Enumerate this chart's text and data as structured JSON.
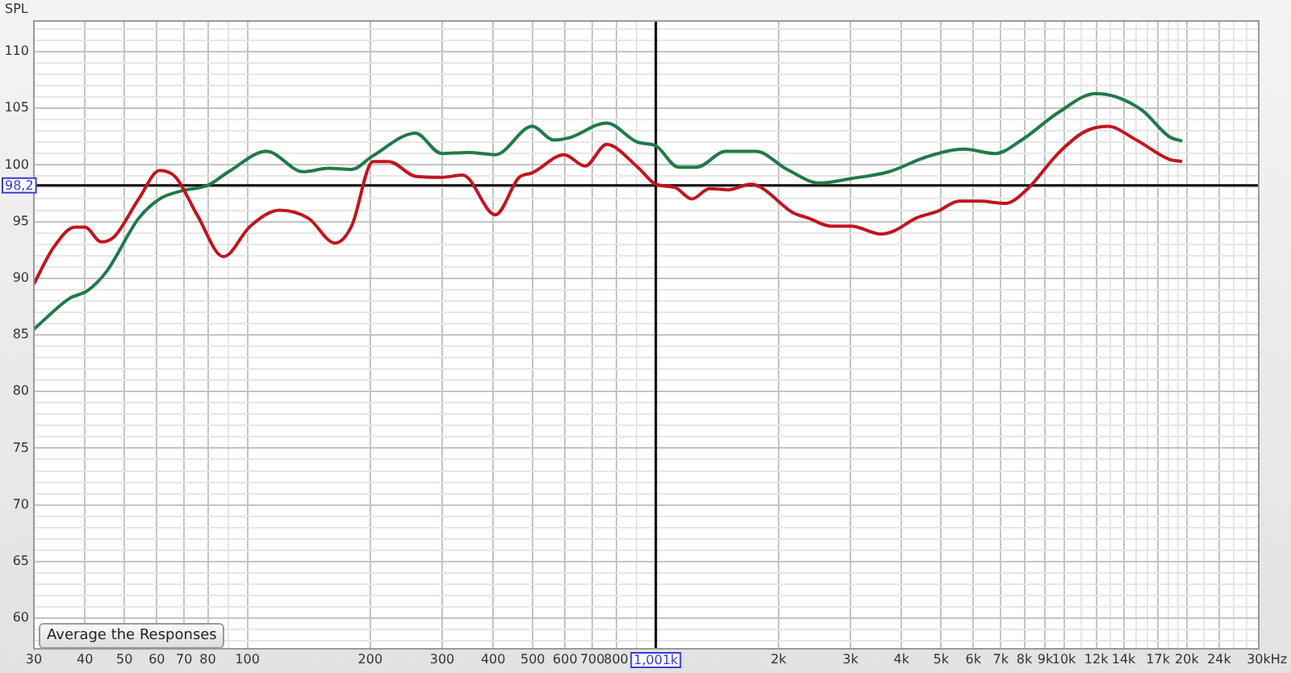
{
  "chart_data": {
    "type": "line",
    "ylabel": "SPL",
    "log": "x",
    "grid": true,
    "legend": false,
    "marker": "none",
    "line_style": "solid",
    "annotations": [
      "Average the Responses"
    ],
    "xlim": [
      30,
      30000
    ],
    "ylim": [
      57.3,
      112.7
    ],
    "xticks": [
      30,
      40,
      50,
      60,
      70,
      80,
      {
        "value": 90,
        "label": null
      },
      100,
      200,
      300,
      400,
      500,
      600,
      700,
      800,
      {
        "value": 900,
        "label": null
      },
      {
        "value": 2000,
        "label": "2k"
      },
      {
        "value": 3000,
        "label": "3k"
      },
      {
        "value": 4000,
        "label": "4k"
      },
      {
        "value": 5000,
        "label": "5k"
      },
      {
        "value": 6000,
        "label": "6k"
      },
      {
        "value": 7000,
        "label": "7k"
      },
      {
        "value": 8000,
        "label": "8k"
      },
      {
        "value": 9000,
        "label": "9k"
      },
      {
        "value": 10000,
        "label": "10k"
      },
      {
        "value": 11000,
        "label": null
      },
      {
        "value": 12000,
        "label": "12k"
      },
      {
        "value": 13000,
        "label": null
      },
      {
        "value": 14000,
        "label": "14k"
      },
      {
        "value": 15000,
        "label": null
      },
      {
        "value": 16000,
        "label": null
      },
      {
        "value": 17000,
        "label": "17k"
      },
      {
        "value": 18000,
        "label": null
      },
      {
        "value": 19000,
        "label": null
      },
      {
        "value": 20000,
        "label": "20k"
      },
      {
        "value": 22000,
        "label": null
      },
      {
        "value": 24000,
        "label": "24k"
      },
      {
        "value": 26000,
        "label": null
      },
      {
        "value": 28000,
        "label": null
      },
      {
        "value": 30000,
        "label": "30k"
      }
    ],
    "xlabel": "Hz",
    "yticks": [
      {
        "value": 58,
        "label": null
      },
      {
        "value": 59,
        "label": null
      },
      60,
      {
        "value": 61,
        "label": null
      },
      {
        "value": 62,
        "label": null
      },
      {
        "value": 63,
        "label": null
      },
      {
        "value": 64,
        "label": null
      },
      65,
      {
        "value": 66,
        "label": null
      },
      {
        "value": 67,
        "label": null
      },
      {
        "value": 68,
        "label": null
      },
      {
        "value": 69,
        "label": null
      },
      70,
      {
        "value": 71,
        "label": null
      },
      {
        "value": 72,
        "label": null
      },
      {
        "value": 73,
        "label": null
      },
      {
        "value": 74,
        "label": null
      },
      75,
      {
        "value": 76,
        "label": null
      },
      {
        "value": 77,
        "label": null
      },
      {
        "value": 78,
        "label": null
      },
      {
        "value": 79,
        "label": null
      },
      80,
      {
        "value": 81,
        "label": null
      },
      {
        "value": 82,
        "label": null
      },
      {
        "value": 83,
        "label": null
      },
      {
        "value": 84,
        "label": null
      },
      85,
      {
        "value": 86,
        "label": null
      },
      {
        "value": 87,
        "label": null
      },
      {
        "value": 88,
        "label": null
      },
      {
        "value": 89,
        "label": null
      },
      90,
      {
        "value": 91,
        "label": null
      },
      {
        "value": 92,
        "label": null
      },
      {
        "value": 93,
        "label": null
      },
      {
        "value": 94,
        "label": null
      },
      95,
      {
        "value": 96,
        "label": null
      },
      {
        "value": 97,
        "label": null
      },
      {
        "value": 98,
        "label": null
      },
      {
        "value": 99,
        "label": null
      },
      100,
      {
        "value": 101,
        "label": null
      },
      {
        "value": 102,
        "label": null
      },
      {
        "value": 103,
        "label": null
      },
      {
        "value": 104,
        "label": null
      },
      105,
      {
        "value": 106,
        "label": null
      },
      {
        "value": 107,
        "label": null
      },
      {
        "value": 108,
        "label": null
      },
      {
        "value": 109,
        "label": null
      },
      110,
      {
        "value": 111,
        "label": null
      },
      {
        "value": 112,
        "label": null
      }
    ],
    "ref_lines": [
      {
        "axis": "x",
        "value": 1001,
        "label": "1,001k",
        "color": "#000000"
      },
      {
        "axis": "y",
        "value": 98.2,
        "label": "98,2",
        "color": "#000000"
      }
    ],
    "series": [
      {
        "color": "#c0161f",
        "x": [
          30,
          33.5,
          37.8,
          40,
          43.9,
          47.3,
          54.2,
          61,
          66.8,
          75.3,
          87.4,
          101.7,
          120,
          141,
          164,
          180,
          203,
          222,
          258,
          299,
          337,
          405,
          463,
          499,
          597,
          672,
          758,
          904,
          1000,
          1117,
          1225,
          1357,
          1510,
          1707,
          1815,
          2164,
          2370,
          2680,
          3015,
          3565,
          3850,
          4340,
          4900,
          5540,
          6230,
          7190,
          8100,
          9670,
          11200,
          12800,
          15050,
          18090,
          19480
        ],
        "values": [
          89.5,
          92.7,
          94.5,
          94.5,
          93.2,
          93.7,
          97.0,
          99.5,
          98.9,
          95.6,
          91.9,
          94.6,
          96.0,
          95.3,
          93.1,
          94.6,
          100.3,
          100.3,
          99.0,
          98.9,
          99.1,
          95.6,
          98.9,
          99.3,
          100.9,
          99.9,
          101.8,
          99.8,
          98.3,
          98.0,
          97.0,
          97.9,
          97.8,
          98.3,
          98.0,
          95.8,
          95.3,
          94.6,
          94.6,
          93.9,
          94.2,
          95.3,
          95.9,
          96.8,
          96.8,
          96.6,
          97.8,
          101.0,
          102.9,
          103.4,
          102.2,
          100.5,
          100.3
        ]
      },
      {
        "color": "#1f7a4a",
        "x": [
          30,
          36.6,
          40.6,
          45.2,
          54.2,
          61,
          68.9,
          80,
          90,
          111.4,
          137,
          158,
          180,
          203,
          258,
          299,
          348,
          405,
          499,
          562,
          616,
          758,
          904,
          1000,
          1137,
          1260,
          1485,
          1760,
          2100,
          2520,
          3015,
          3730,
          4600,
          5700,
          6780,
          7880,
          9670,
          11970,
          13440,
          15560,
          18090,
          19480
        ],
        "values": [
          85.5,
          88.2,
          88.9,
          90.6,
          95.3,
          97.0,
          97.7,
          98.2,
          99.4,
          101.2,
          99.4,
          99.7,
          99.6,
          100.8,
          102.8,
          101.0,
          101.1,
          100.9,
          103.4,
          102.2,
          102.4,
          103.7,
          102.0,
          101.7,
          99.8,
          99.8,
          101.2,
          101.2,
          99.6,
          98.4,
          98.8,
          99.4,
          100.7,
          101.4,
          101.0,
          102.2,
          104.6,
          106.3,
          106.0,
          104.8,
          102.5,
          102.1
        ]
      }
    ]
  }
}
